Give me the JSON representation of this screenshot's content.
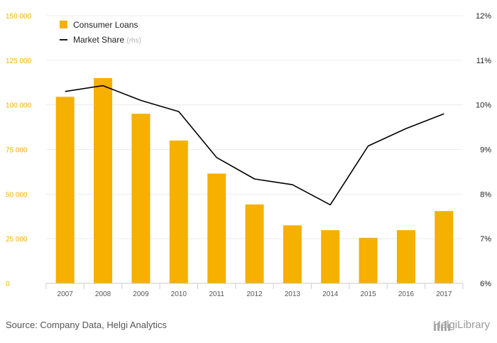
{
  "chart_data": {
    "type": "bar",
    "categories": [
      "2007",
      "2008",
      "2009",
      "2010",
      "2011",
      "2012",
      "2013",
      "2014",
      "2015",
      "2016",
      "2017"
    ],
    "series": [
      {
        "name": "Consumer Loans",
        "type": "bar",
        "axis": "left",
        "color": "#f5b000",
        "values": [
          104500,
          115000,
          95000,
          80000,
          61500,
          44200,
          32500,
          29800,
          25500,
          29800,
          40500
        ]
      },
      {
        "name": "Market Share",
        "type": "line",
        "axis": "right",
        "color": "#000000",
        "unit": "%",
        "values": [
          10.3,
          10.43,
          10.1,
          9.85,
          8.82,
          8.34,
          8.21,
          7.76,
          9.08,
          9.47,
          9.8
        ]
      }
    ],
    "y_left": {
      "lim": [
        0,
        150000
      ],
      "ticks": [
        "0",
        "25 000",
        "50 000",
        "75 000",
        "100 000",
        "125 000",
        "150 000"
      ],
      "tick_color": "#f5b000"
    },
    "y_right": {
      "lim": [
        6,
        12
      ],
      "ticks": [
        "6%",
        "7%",
        "8%",
        "9%",
        "10%",
        "11%",
        "12%"
      ]
    },
    "grid": true,
    "legend": {
      "position": "top-left",
      "items": [
        {
          "label": "Consumer Loans",
          "suffix": ""
        },
        {
          "label": "Market Share",
          "suffix": "(rhs)"
        }
      ]
    }
  },
  "footer": {
    "source": "Source: Company Data, Helgi Analytics",
    "brand": "HelgiLibrary"
  },
  "colors": {
    "accent": "#f5b000",
    "text": "#555555",
    "brand": "#9a9a9a"
  }
}
